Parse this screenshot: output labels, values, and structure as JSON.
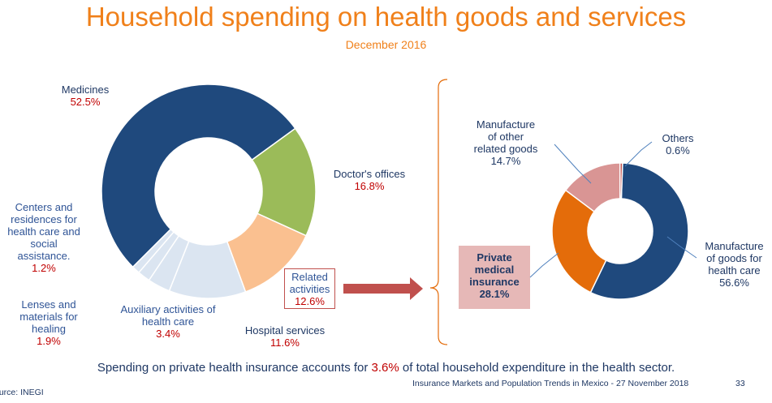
{
  "chart_data": [
    {
      "type": "pie",
      "title": "Household spending on health goods and services",
      "subtitle": "December 2016",
      "hole": true,
      "categories": [
        "Medicines",
        "Doctor's offices",
        "Related activities",
        "Hospital services",
        "Auxiliary activities of health care",
        "Lenses and materials for healing",
        "Centers and residences for health care and social assistance."
      ],
      "values": [
        52.5,
        16.8,
        12.6,
        11.6,
        3.4,
        1.9,
        1.2
      ],
      "value_labels": [
        "52.5%",
        "16.8%",
        "12.6%",
        "11.6%",
        "3.4%",
        "1.9%",
        "1.2%"
      ],
      "colors": [
        "#1f497d",
        "#9bbb59",
        "#fac090",
        "#dbe5f1",
        "#dbe5f1",
        "#dbe5f1",
        "#dbe5f1"
      ]
    },
    {
      "type": "pie",
      "hole": true,
      "categories": [
        "Manufacture of goods for health care",
        "Private medical insurance",
        "Manufacture of other related goods",
        "Others"
      ],
      "values": [
        56.6,
        28.1,
        14.7,
        0.6
      ],
      "value_labels": [
        "56.6%",
        "28.1%",
        "14.7%",
        "0.6%"
      ],
      "colors": [
        "#1f497d",
        "#e46c0a",
        "#d99594",
        "#c0504d"
      ]
    }
  ],
  "labels": {
    "medicines": {
      "name": "Medicines",
      "value": "52.5%"
    },
    "doctors": {
      "name": "Doctor's offices",
      "value": "16.8%"
    },
    "centers": {
      "l1": "Centers and",
      "l2": "residences for",
      "l3": "health care and",
      "l4": "social",
      "l5": "assistance.",
      "value": "1.2%"
    },
    "lenses": {
      "l1": "Lenses and",
      "l2": "materials for",
      "l3": "healing",
      "value": "1.9%"
    },
    "auxiliary": {
      "l1": "Auxiliary activities of",
      "l2": "health care",
      "value": "3.4%"
    },
    "hospital": {
      "name": "Hospital services",
      "value": "11.6%"
    },
    "related": {
      "l1": "Related",
      "l2": "activities",
      "value": "12.6%"
    },
    "other_goods": {
      "l1": "Manufacture",
      "l2": "of other",
      "l3": "related goods",
      "value": "14.7%"
    },
    "others": {
      "name": "Others",
      "value": "0.6%"
    },
    "manufacture_goods": {
      "l1": "Manufacture",
      "l2": "of goods for",
      "l3": "health care",
      "value": "56.6%"
    },
    "private_insurance": {
      "l1": "Private",
      "l2": "medical",
      "l3": "insurance",
      "value": "28.1%"
    }
  },
  "footnote": {
    "before": "Spending on private health insurance accounts for",
    "highlight": "3.6%",
    "after": "of total household expenditure in the health sector."
  },
  "footer": {
    "text": "Insurance Markets and Population Trends in Mexico - 27 November 2018",
    "page": "33",
    "source": "ource: INEGI"
  }
}
